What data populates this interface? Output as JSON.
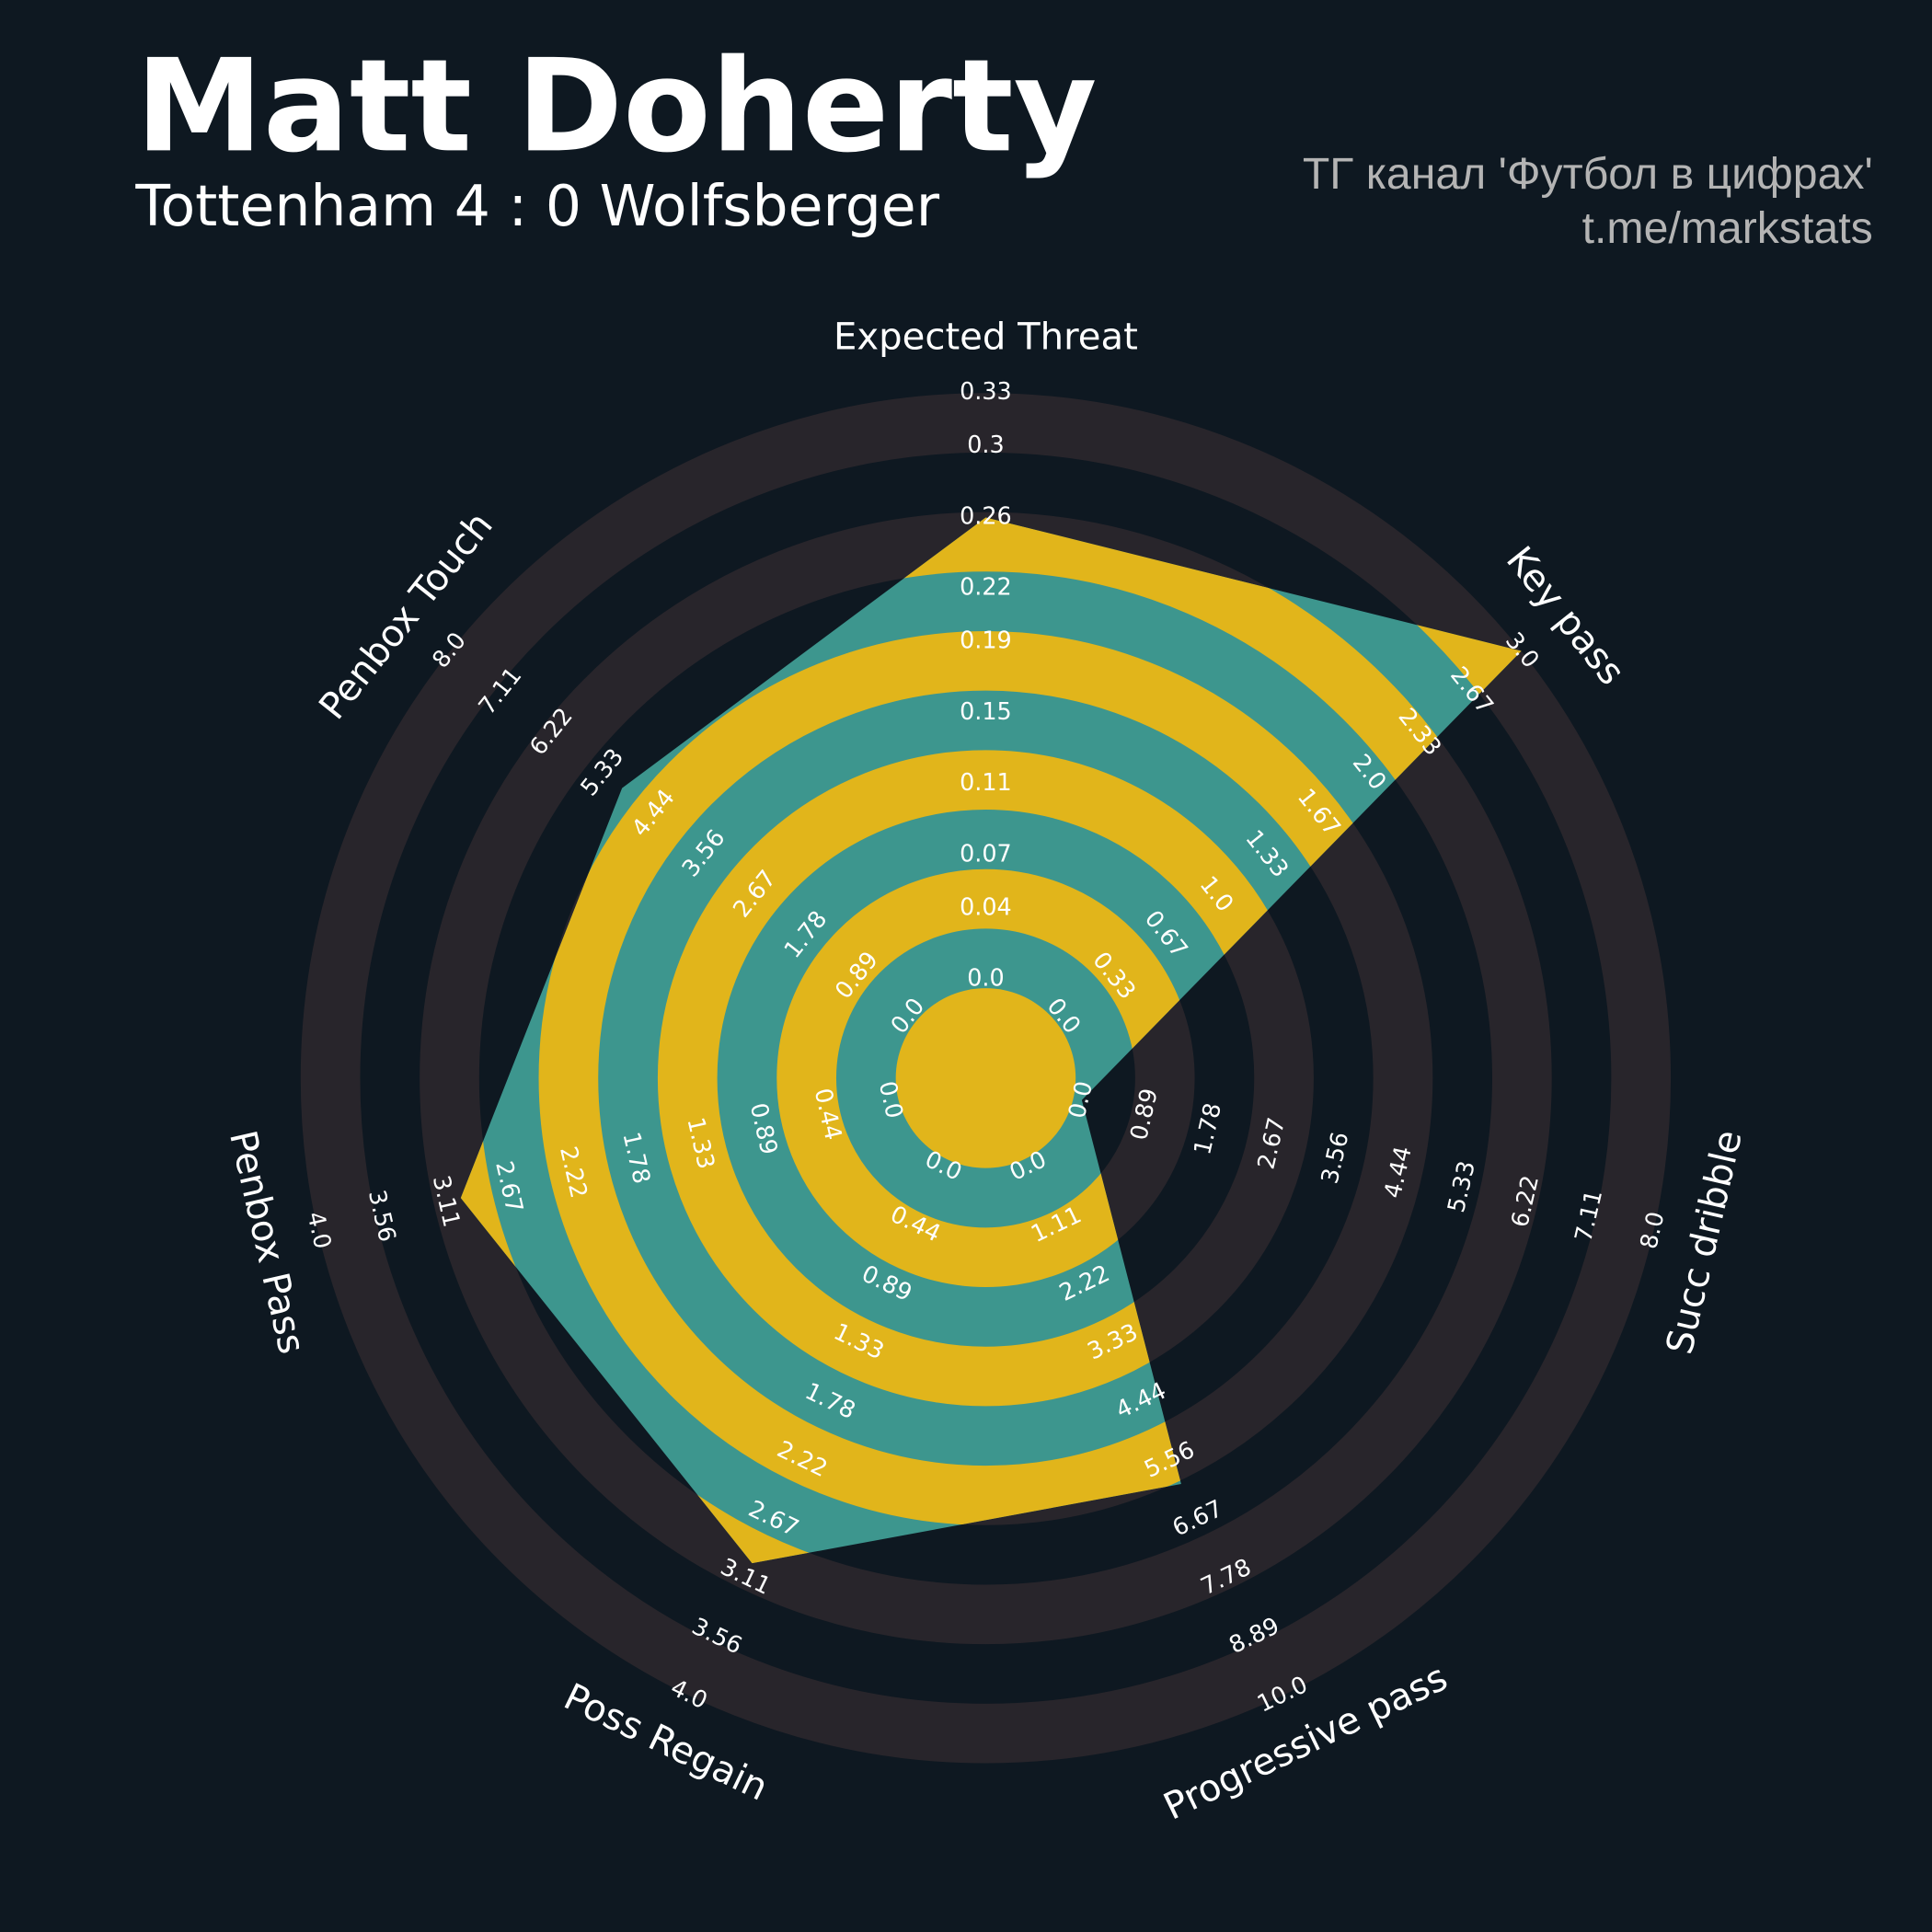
{
  "chart_data": {
    "type": "radar",
    "title": "Matt Doherty",
    "subtitle": "Tottenham 4 : 0 Wolfsberger",
    "credits": [
      "ТГ канал 'Футбол в цифрах'",
      "t.me/markstats"
    ],
    "axes": [
      {
        "name": "Expected Threat",
        "lim": [
          0,
          0.33
        ],
        "ticks": [
          {
            "value": 0,
            "label": "0.0"
          },
          0.04,
          0.07,
          0.11,
          0.15,
          0.19,
          0.22,
          0.26,
          0.3,
          0.33
        ]
      },
      {
        "name": "Key pass",
        "lim": [
          0,
          3
        ],
        "ticks": [
          {
            "value": 0,
            "label": "0.0"
          },
          0.33,
          0.67,
          {
            "value": 1,
            "label": "1.0"
          },
          1.33,
          1.67,
          {
            "value": 2,
            "label": "2.0"
          },
          2.33,
          2.67,
          {
            "value": 3,
            "label": "3.0"
          }
        ]
      },
      {
        "name": "Succ dribble",
        "lim": [
          0,
          8
        ],
        "ticks": [
          {
            "value": 0,
            "label": "0.0"
          },
          0.89,
          1.78,
          2.67,
          3.56,
          4.44,
          5.33,
          6.22,
          7.11,
          {
            "value": 8,
            "label": "8.0"
          }
        ]
      },
      {
        "name": "Progressive pass",
        "lim": [
          0,
          10
        ],
        "ticks": [
          {
            "value": 0,
            "label": "0.0"
          },
          1.11,
          2.22,
          3.33,
          4.44,
          5.56,
          6.67,
          7.78,
          8.89,
          {
            "value": 10,
            "label": "10.0"
          }
        ]
      },
      {
        "name": "Poss Regain",
        "lim": [
          0,
          4
        ],
        "ticks": [
          {
            "value": 0,
            "label": "0.0"
          },
          0.44,
          0.89,
          1.33,
          1.78,
          2.22,
          2.67,
          3.11,
          3.56,
          {
            "value": 4,
            "label": "4.0"
          }
        ]
      },
      {
        "name": "Penbox Pass",
        "lim": [
          0,
          4
        ],
        "ticks": [
          {
            "value": 0,
            "label": "0.0"
          },
          0.44,
          0.89,
          1.33,
          1.78,
          2.22,
          2.67,
          3.11,
          3.56,
          {
            "value": 4,
            "label": "4.0"
          }
        ]
      },
      {
        "name": "Penbox Touch",
        "lim": [
          0,
          8
        ],
        "ticks": [
          {
            "value": 0,
            "label": "0.0"
          },
          0.89,
          1.78,
          2.67,
          3.56,
          4.44,
          5.33,
          6.22,
          7.11,
          {
            "value": 8,
            "label": "8.0"
          }
        ]
      }
    ],
    "series": [
      {
        "color": "#3d968e",
        "ring_color": "#e1b51b",
        "values": [
          0.26,
          3,
          0,
          6,
          3,
          3,
          5
        ]
      }
    ],
    "ring_color": "#28252b"
  }
}
